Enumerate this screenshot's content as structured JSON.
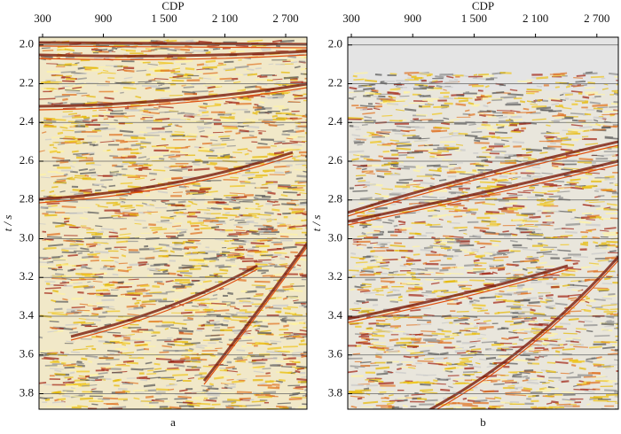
{
  "chart_data": [
    {
      "type": "image",
      "caption": "a",
      "xlabel": "CDP",
      "ylabel": "t / s",
      "xlim": [
        265,
        2910
      ],
      "xticks": [
        300,
        900,
        {
          "value": 1500,
          "label": "1 500"
        },
        {
          "value": 2100,
          "label": "2 100"
        },
        {
          "value": 2700,
          "label": "2 700"
        }
      ],
      "ylim": [
        1.96,
        3.88
      ],
      "y_inverted": true,
      "yticks": [
        {
          "value": 2.0,
          "label": "2.0"
        },
        2.2,
        2.4,
        2.6,
        2.8,
        {
          "value": 3.0,
          "label": "3.0"
        },
        3.2,
        3.4,
        3.6,
        3.8
      ],
      "grid": true
    },
    {
      "type": "image",
      "caption": "b",
      "xlabel": "CDP",
      "ylabel": "t / s",
      "xlim": [
        265,
        2910
      ],
      "xticks": [
        300,
        900,
        {
          "value": 1500,
          "label": "1 500"
        },
        {
          "value": 2100,
          "label": "2 100"
        },
        {
          "value": 2700,
          "label": "2 700"
        }
      ],
      "ylim": [
        1.96,
        3.88
      ],
      "y_inverted": true,
      "yticks": [
        {
          "value": 2.0,
          "label": "2.0"
        },
        2.2,
        2.4,
        2.6,
        2.8,
        {
          "value": 3.0,
          "label": "3.0"
        },
        3.2,
        3.4,
        3.6,
        3.8
      ],
      "grid": true
    }
  ]
}
